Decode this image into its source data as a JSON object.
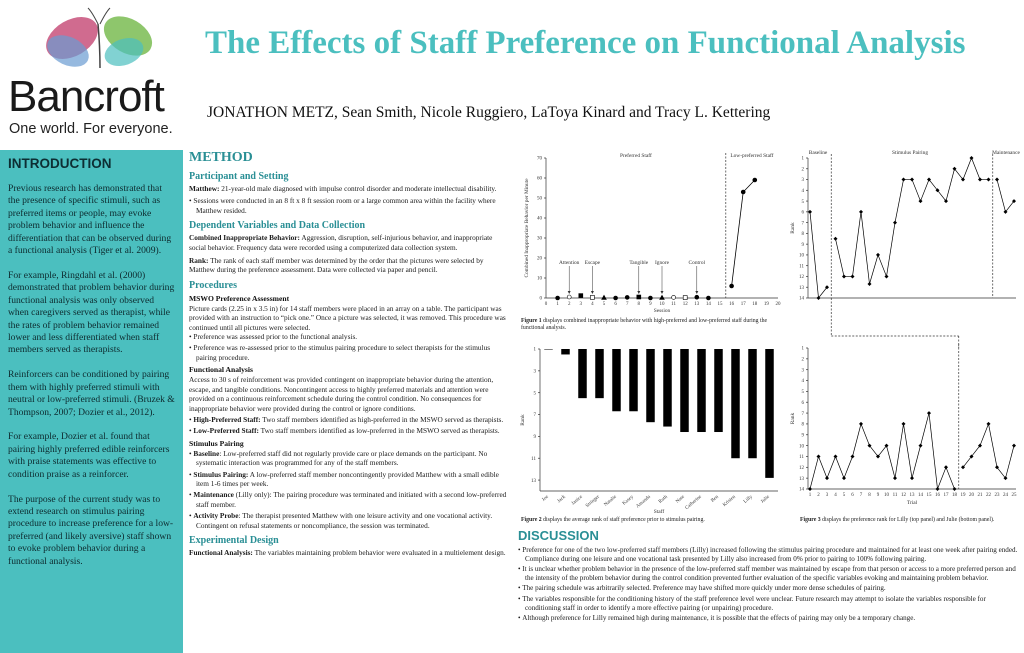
{
  "header": {
    "logo_word": "Bancroft",
    "logo_tagline": "One world. For everyone.",
    "title": "The Effects of Staff Preference on Functional Analysis",
    "authors": "JONATHON METZ, Sean Smith, Nicole Ruggiero, LaToya Kinard and Tracy L. Kettering"
  },
  "intro": {
    "heading": "INTRODUCTION",
    "paragraphs": [
      "Previous research has demonstrated that the presence of specific stimuli, such as preferred items or people, may evoke problem behavior and influence the differentiation that can be observed during a functional analysis (Tiger et al. 2009).",
      "For example, Ringdahl et al. (2000) demonstrated that problem behavior during functional analysis was only observed when caregivers served as therapist, while the rates of problem behavior remained lower and less differentiated when staff members served as therapists.",
      "Reinforcers can be conditioned by pairing them with highly preferred stimuli with neutral or low-preferred stimuli. (Bruzek & Thompson, 2007; Dozier et al., 2012).",
      "For example, Dozier et al. found that pairing highly preferred edible reinforcers with praise statements was effective to condition praise as a reinforcer.",
      "The purpose of the current study was to extend research on stimulus pairing procedure to increase preference for a low-preferred (and likely aversive) staff shown to evoke problem behavior during a functional analysis."
    ]
  },
  "method": {
    "heading": "METHOD",
    "participant_heading": "Participant and Setting",
    "participant_label": "Matthew:",
    "participant_text": " 21-year-old male diagnosed with impulse control disorder and moderate intellectual disability.",
    "setting_bullet": "Sessions were conducted in an 8 ft x 8 ft session room or a large common area within the facility where Matthew resided.",
    "dv_heading": "Dependent Variables and Data Collection",
    "cib_label": "Combined Inappropriate Behavior:",
    "cib_text": " Aggression, disruption, self-injurious behavior, and inappropriate social behavior. Frequency data were recorded using a computerized data collection system.",
    "rank_label": "Rank:",
    "rank_text": " The rank of each staff member was determined by the order that the pictures were selected by Matthew during the preference assessment. Data were collected via paper and pencil.",
    "procedures_heading": "Procedures",
    "mswo_heading": "MSWO Preference Assessment",
    "mswo_text": "Picture cards (2.25 in x 3.5 in) for 14 staff members were placed in an array on a table. The participant was provided with an instruction to “pick one.” Once a picture was selected, it was removed. This procedure was continued until all pictures were selected.",
    "mswo_bullets": [
      "Preference was assessed prior to the functional analysis.",
      "Preference was re-assessed prior to the stimulus pairing procedure to select therapists for the stimulus pairing procedure."
    ],
    "fa_heading": "Functional Analysis",
    "fa_text": "Access to 30 s of reinforcement was provided contingent on inappropriate behavior during the attention, escape, and tangible conditions. Noncontingent access to highly preferred materials and attention were provided on a continuous reinforcement schedule during the control condition. No consequences for inappropriate behavior were provided during the control or ignore conditions.",
    "fa_bullets": [
      {
        "label": "High-Preferred Staff:",
        "text": " Two staff members identified as high-preferred in the MSWO served as therapists."
      },
      {
        "label": "Low-Preferred Staff:",
        "text": " Two staff members identified as low-preferred in the MSWO served as therapists."
      }
    ],
    "sp_heading": "Stimulus Pairing",
    "sp_bullets": [
      {
        "label": "Baseline",
        "text": ": Low-preferred staff did not regularly provide care or place demands on the participant. No systematic interaction was programmed for any of the staff members."
      },
      {
        "label": "Stimulus Pairing:",
        "text": " A low-preferred staff member noncontingently provided Matthew with a small edible item 1-6 times per week."
      },
      {
        "label": "Maintenance",
        "text": " (Lilly only): The pairing procedure was terminated and initiated with a second low-preferred staff member."
      },
      {
        "label": "Activity Probe",
        "text": ": The therapist presented Matthew with one leisure activity and one vocational activity.  Contingent on refusal statements or noncompliance, the session was terminated."
      }
    ],
    "design_heading": "Experimental Design",
    "design_label": "Functional Analysis:",
    "design_text": " The variables maintaining problem behavior were evaluated in a multielement design."
  },
  "fig1": {
    "phase_left": "Preferred Staff",
    "phase_right": "Low-preferred Staff",
    "ylabel": "Combined Inappropriate Behavior per Minute",
    "xlabel": "Session",
    "annotations": [
      "Attention",
      "Escape",
      "Tangible",
      "Ignore",
      "Control"
    ],
    "caption_label": "Figure 1",
    "caption_text": " displays combined inappropriate behavior with high-preferred and low-preferred staff during the functional analysis."
  },
  "fig2": {
    "ylabel": "Rank",
    "xlabel": "Staff",
    "caption_label": "Figure 2",
    "caption_text": " displays the average rank of staff preference prior to stimulus pairing."
  },
  "fig3": {
    "phase_baseline": "Baseline",
    "phase_pairing": "Stimulus Pairing",
    "phase_maint": "Maintenance",
    "ylabel": "Rank",
    "xlabel": "Trial",
    "caption_label": "Figure 3",
    "caption_text": " displays the preference rank for Lilly (top panel) and  Julie (bottom panel)."
  },
  "discussion": {
    "heading": "DISCUSSION",
    "bullets": [
      "Preference for one of  the two low-preferred staff members (Lilly) increased following the stimulus pairing procedure and maintained for at least one week after pairing ended. Compliance during one leisure and one vocational task presented by Lilly also increased from 0% prior to pairing to 100% following pairing.",
      "It is unclear whether problem behavior in the presence of the low-preferred staff member was maintained by escape from that person or access to a more preferred person and the intensity of the problem behavior during the control condition prevented further evaluation of the specific variables evoking and maintaining problem behavior.",
      "The pairing schedule was arbitrarily selected. Preference may have shifted more quickly under more dense schedules of pairing.",
      "The variables responsible for the conditioning history of  the staff preference level were unclear. Future research may attempt to isolate the variables responsible for conditioning staff in order to identify a more effective pairing (or unpairing) procedure.",
      "Although preference for Lilly remained high during maintenance, it is possible that the effects of pairing may only be a temporary change."
    ]
  },
  "chart_data": [
    {
      "type": "line",
      "title": "",
      "xlabel": "Session",
      "ylabel": "Combined Inappropriate Behavior per Minute",
      "xlim": [
        0,
        20
      ],
      "ylim": [
        0,
        70
      ],
      "x_ticks": [
        0,
        1,
        2,
        3,
        4,
        5,
        6,
        7,
        8,
        9,
        10,
        11,
        12,
        13,
        14,
        15,
        16,
        17,
        18,
        19,
        20
      ],
      "y_ticks": [
        0,
        10,
        20,
        30,
        40,
        50,
        60,
        70
      ],
      "phase_change_after_session": 15.5,
      "series": [
        {
          "name": "Attention",
          "x": [
            2,
            11
          ],
          "y": [
            0.5,
            0.3
          ]
        },
        {
          "name": "Escape",
          "x": [
            4,
            12
          ],
          "y": [
            0.3,
            0.2
          ]
        },
        {
          "name": "Tangible",
          "x": [
            3,
            8
          ],
          "y": [
            1.2,
            0.5
          ]
        },
        {
          "name": "Ignore",
          "x": [
            5,
            10
          ],
          "y": [
            0.2,
            0.2
          ]
        },
        {
          "name": "Control",
          "x": [
            1,
            6,
            7,
            9,
            13,
            14
          ],
          "y": [
            0,
            0,
            0.3,
            0,
            0.4,
            0
          ]
        },
        {
          "name": "Low-preferred Staff",
          "x": [
            16,
            17,
            18
          ],
          "y": [
            6,
            53,
            59
          ]
        }
      ]
    },
    {
      "type": "bar",
      "title": "",
      "xlabel": "Staff",
      "ylabel": "Rank",
      "ylim": [
        1,
        14
      ],
      "y_inverted": true,
      "y_ticks": [
        1,
        3,
        5,
        7,
        9,
        11,
        13
      ],
      "categories": [
        "Joe",
        "Jack",
        "Janice",
        "Stringer",
        "Natalie",
        "Kasey",
        "Amanda",
        "Ruth",
        "Nate",
        "Catherine",
        "Ben",
        "Kristen",
        "Lilly",
        "Julie"
      ],
      "values": [
        1,
        1.5,
        5.5,
        5.5,
        6.7,
        6.7,
        7.7,
        8.1,
        8.6,
        8.6,
        8.6,
        11,
        11,
        12.8
      ]
    },
    {
      "type": "line",
      "title": "",
      "xlabel": "Trial",
      "ylabel": "Rank",
      "panel": "top",
      "y_inverted": true,
      "ylim": [
        1,
        14
      ],
      "xlim": [
        1,
        25
      ],
      "series": [
        {
          "name": "Lilly",
          "x": [
            1,
            2,
            3,
            4,
            5,
            6,
            7,
            8,
            9,
            10,
            11,
            12,
            13,
            14,
            15,
            16,
            17,
            18,
            19,
            20,
            21,
            22,
            23,
            24,
            25
          ],
          "y": [
            6,
            14,
            13,
            8.5,
            12,
            12,
            6,
            12.7,
            10,
            12,
            7,
            3,
            3,
            5,
            3,
            4,
            5,
            2,
            3,
            1,
            3,
            3,
            3,
            6,
            5
          ]
        }
      ],
      "phase_lines_after_trial": [
        3.5,
        22.5
      ]
    },
    {
      "type": "line",
      "title": "",
      "xlabel": "Trial",
      "ylabel": "Rank",
      "panel": "bottom",
      "y_inverted": true,
      "ylim": [
        1,
        14
      ],
      "xlim": [
        1,
        25
      ],
      "series": [
        {
          "name": "Julie",
          "x": [
            1,
            2,
            3,
            4,
            5,
            6,
            7,
            8,
            9,
            10,
            11,
            12,
            13,
            14,
            15,
            16,
            17,
            18,
            19,
            20,
            21,
            22,
            23,
            24,
            25
          ],
          "y": [
            14,
            11,
            13,
            11,
            13,
            11,
            8,
            10,
            11,
            10,
            13,
            8,
            13,
            10,
            7,
            14,
            12,
            14,
            12,
            11,
            10,
            8,
            12,
            13,
            10
          ]
        }
      ],
      "phase_lines_after_trial": [
        18.5
      ]
    }
  ]
}
